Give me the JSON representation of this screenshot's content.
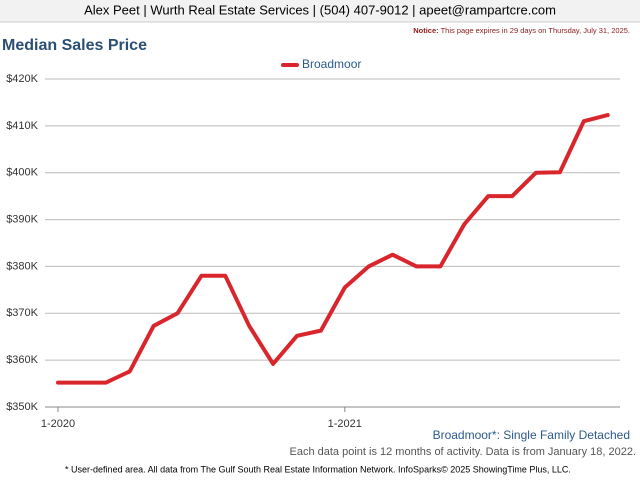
{
  "header": {
    "contact": "Alex Peet | Wurth Real Estate Services | (504) 407-9012 | apeet@rampartcre.com",
    "notice_label": "Notice:",
    "notice_text": "This page expires in 29 days on Thursday, July 31, 2025."
  },
  "chart_data": {
    "type": "line",
    "title": "Median Sales Price",
    "categories": [
      "1-2020",
      null,
      null,
      null,
      null,
      null,
      null,
      null,
      null,
      null,
      null,
      null,
      "1-2021",
      null,
      null,
      null,
      null,
      null,
      null,
      null,
      null,
      null,
      null,
      null
    ],
    "series": [
      {
        "name": "Broadmoor",
        "color": "#d9262c",
        "values": [
          355200,
          355200,
          355200,
          357600,
          367300,
          370000,
          378000,
          378000,
          367300,
          359200,
          365200,
          366300,
          375500,
          380000,
          382500,
          380000,
          380000,
          389000,
          395000,
          395000,
          400000,
          400100,
          411000,
          412300
        ]
      }
    ],
    "ylim": [
      350000,
      420000
    ],
    "yticks": [
      {
        "value": 350000,
        "label": "$350K"
      },
      {
        "value": 360000,
        "label": "$360K"
      },
      {
        "value": 370000,
        "label": "$370K"
      },
      {
        "value": 380000,
        "label": "$380K"
      },
      {
        "value": 390000,
        "label": "$390K"
      },
      {
        "value": 400000,
        "label": "$400K"
      },
      {
        "value": 410000,
        "label": "$410K"
      },
      {
        "value": 420000,
        "label": "$420K"
      }
    ],
    "grid": true,
    "legend": "top",
    "subtitle": "Broadmoor*: Single Family Detached",
    "note": "Each data point is 12 months of activity. Data is from January 18, 2022.",
    "footnote": "* User-defined area. All data from The Gulf South Real Estate Information Network. InfoSparks© 2025 ShowingTime Plus, LLC."
  }
}
